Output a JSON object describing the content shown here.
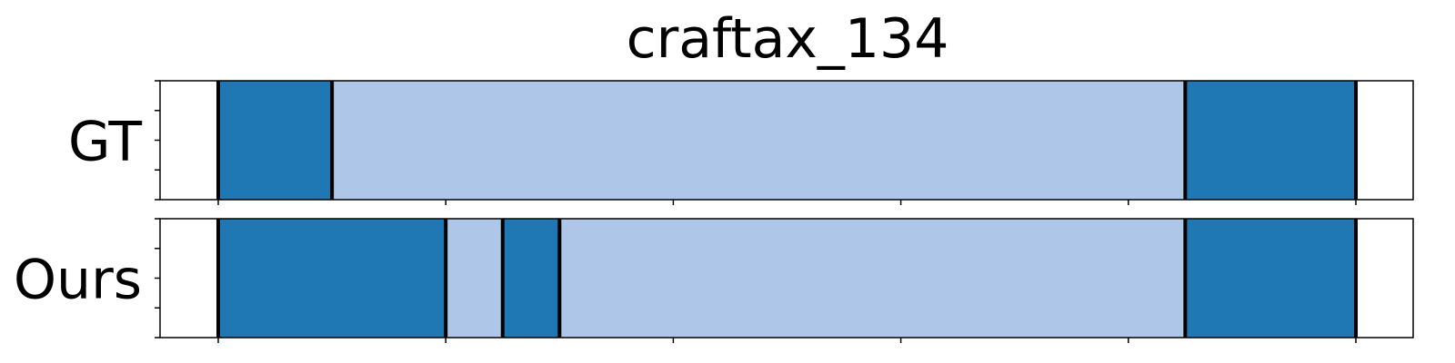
{
  "chart_data": {
    "type": "segment_timeline",
    "title": "craftax_134",
    "x_range": [
      0,
      100
    ],
    "colors": {
      "dark": "#1f77b4",
      "light": "#aec7e8",
      "boundary": "#000000"
    },
    "rows": [
      {
        "label": "GT",
        "segments": [
          {
            "start": 5,
            "end": 15,
            "color": "dark"
          },
          {
            "start": 15,
            "end": 90,
            "color": "light"
          },
          {
            "start": 90,
            "end": 105,
            "color": "dark"
          }
        ]
      },
      {
        "label": "Ours",
        "segments": [
          {
            "start": 5,
            "end": 25,
            "color": "dark"
          },
          {
            "start": 25,
            "end": 30,
            "color": "light"
          },
          {
            "start": 30,
            "end": 35,
            "color": "dark"
          },
          {
            "start": 35,
            "end": 90,
            "color": "light"
          },
          {
            "start": 90,
            "end": 105,
            "color": "dark"
          }
        ]
      }
    ],
    "x_ticks": [
      5,
      25,
      45,
      65,
      85,
      105
    ],
    "y_ticks_per_row": 5
  }
}
